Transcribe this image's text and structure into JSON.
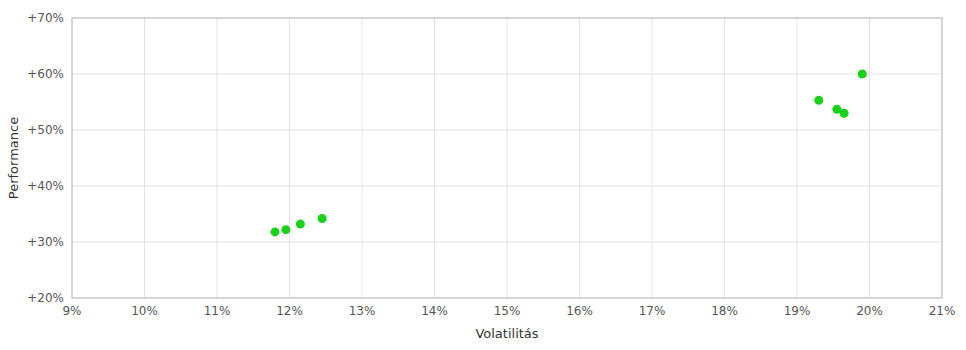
{
  "chart_data": {
    "type": "scatter",
    "xlabel": "Volatilitás",
    "ylabel": "Performance",
    "x": [
      0.118,
      0.1195,
      0.1215,
      0.1245,
      0.193,
      0.1955,
      0.1965,
      0.199
    ],
    "values": [
      0.318,
      0.322,
      0.332,
      0.342,
      0.553,
      0.537,
      0.53,
      0.6
    ],
    "color": "#00cc00",
    "xlim": [
      0.09,
      0.21
    ],
    "ylim": [
      0.2,
      0.7
    ],
    "xticks": [
      {
        "value": 0.09,
        "label": "9%"
      },
      {
        "value": 0.1,
        "label": "10%"
      },
      {
        "value": 0.11,
        "label": "11%"
      },
      {
        "value": 0.12,
        "label": "12%"
      },
      {
        "value": 0.13,
        "label": "13%"
      },
      {
        "value": 0.14,
        "label": "14%"
      },
      {
        "value": 0.15,
        "label": "15%"
      },
      {
        "value": 0.16,
        "label": "16%"
      },
      {
        "value": 0.17,
        "label": "17%"
      },
      {
        "value": 0.18,
        "label": "18%"
      },
      {
        "value": 0.19,
        "label": "19%"
      },
      {
        "value": 0.2,
        "label": "20%"
      },
      {
        "value": 0.21,
        "label": "21%"
      }
    ],
    "yticks": [
      {
        "value": 0.2,
        "label": "+20%"
      },
      {
        "value": 0.3,
        "label": "+30%"
      },
      {
        "value": 0.4,
        "label": "+40%"
      },
      {
        "value": 0.5,
        "label": "+50%"
      },
      {
        "value": 0.6,
        "label": "+60%"
      },
      {
        "value": 0.7,
        "label": "+70%"
      }
    ],
    "grid": true
  }
}
